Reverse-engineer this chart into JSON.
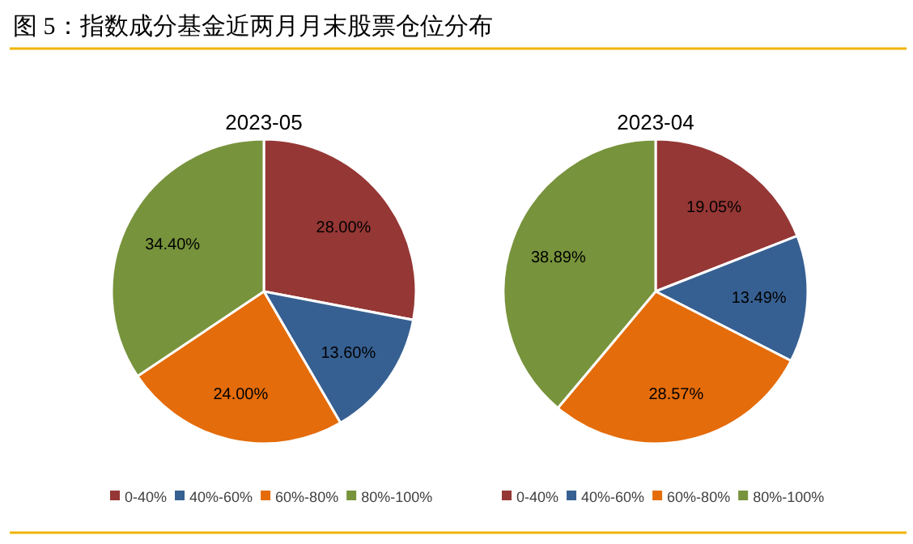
{
  "chart_data": [
    {
      "type": "pie",
      "title": "2023-05",
      "annotations": [
        "图 5：指数成分基金近两月月末股票仓位分布"
      ],
      "categories": [
        "0-40%",
        "40%-60%",
        "60%-80%",
        "80%-100%"
      ],
      "values": [
        28.0,
        13.6,
        24.0,
        34.4
      ],
      "value_labels": [
        "28.00%",
        "13.60%",
        "24.00%",
        "34.40%"
      ],
      "colors": [
        "#953735",
        "#376092",
        "#e46c0a",
        "#77933c"
      ],
      "legend": "bottom"
    },
    {
      "type": "pie",
      "title": "2023-04",
      "categories": [
        "0-40%",
        "40%-60%",
        "60%-80%",
        "80%-100%"
      ],
      "values": [
        19.05,
        13.49,
        28.57,
        38.89
      ],
      "value_labels": [
        "19.05%",
        "13.49%",
        "28.57%",
        "38.89%"
      ],
      "colors": [
        "#953735",
        "#376092",
        "#e46c0a",
        "#77933c"
      ],
      "legend": "bottom"
    }
  ]
}
